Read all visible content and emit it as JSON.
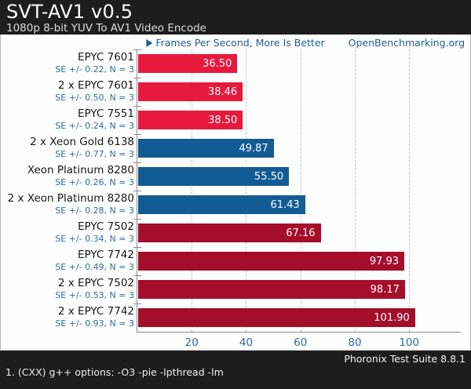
{
  "header": {
    "title": "SVT-AV1 v0.5",
    "subtitle": "1080p 8-bit YUV To AV1 Video Encode"
  },
  "meta": {
    "better_label": "Frames Per Second, More Is Better",
    "play_icon": "play-triangle",
    "site_link": "OpenBenchmarking.org"
  },
  "chart_data": {
    "type": "bar",
    "orientation": "horizontal",
    "title": "SVT-AV1 v0.5",
    "subtitle": "1080p 8-bit YUV To AV1 Video Encode",
    "xlabel": "Frames Per Second",
    "better_direction": "More Is Better",
    "xlim": [
      0,
      119
    ],
    "xticks": [
      20,
      40,
      60,
      80,
      100
    ],
    "grid": "vertical-dashed",
    "rows": [
      {
        "label": "EPYC 7601",
        "se": "SE +/- 0.22, N = 3",
        "value": 36.5,
        "display": "36.50",
        "color": "#e6193c"
      },
      {
        "label": "2 x EPYC 7601",
        "se": "SE +/- 0.50, N = 3",
        "value": 38.46,
        "display": "38.46",
        "color": "#e6193c"
      },
      {
        "label": "EPYC 7551",
        "se": "SE +/- 0.24, N = 3",
        "value": 38.5,
        "display": "38.50",
        "color": "#e6193c"
      },
      {
        "label": "2 x Xeon Gold 6138",
        "se": "SE +/- 0.77, N = 3",
        "value": 49.87,
        "display": "49.87",
        "color": "#135b93"
      },
      {
        "label": "Xeon Platinum 8280",
        "se": "SE +/- 0.26, N = 3",
        "value": 55.5,
        "display": "55.50",
        "color": "#135b93"
      },
      {
        "label": "2 x Xeon Platinum 8280",
        "se": "SE +/- 0.28, N = 3",
        "value": 61.43,
        "display": "61.43",
        "color": "#135b93"
      },
      {
        "label": "EPYC 7502",
        "se": "SE +/- 0.34, N = 3",
        "value": 67.16,
        "display": "67.16",
        "color": "#a40e2b"
      },
      {
        "label": "EPYC 7742",
        "se": "SE +/- 0.49, N = 3",
        "value": 97.93,
        "display": "97.93",
        "color": "#a40e2b"
      },
      {
        "label": "2 x EPYC 7502",
        "se": "SE +/- 0.53, N = 3",
        "value": 98.17,
        "display": "98.17",
        "color": "#a40e2b"
      },
      {
        "label": "2 x EPYC 7742",
        "se": "SE +/- 0.93, N = 3",
        "value": 101.9,
        "display": "101.90",
        "color": "#a40e2b"
      }
    ]
  },
  "footer": {
    "suite": "Phoronix Test Suite 8.8.1",
    "note": "1. (CXX) g++ options: -O3 -pie -lpthread -lm"
  },
  "colors": {
    "header_bg": "#1d1d1d",
    "canvas_bg": "#fefefe",
    "bar_red": "#e6193c",
    "bar_blue": "#135b93",
    "bar_dark_red": "#a40e2b",
    "label_text": "#161616",
    "se_text": "#2e6da4",
    "meta_text": "#1f5d8f",
    "tick_text": "#2e6da4",
    "grid_line": "#c4c4c4",
    "axis_line": "#8a8a8a",
    "value_text": "#ffffff"
  }
}
